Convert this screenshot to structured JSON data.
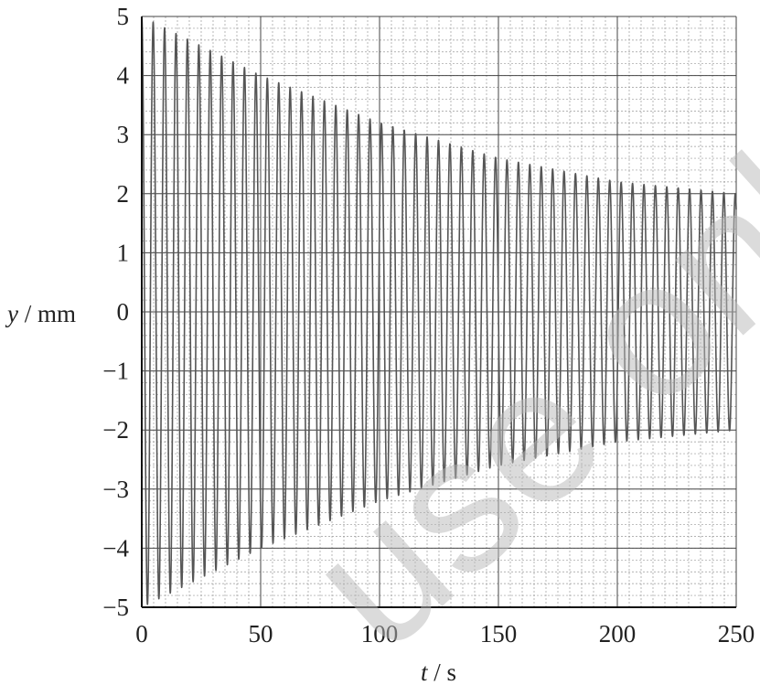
{
  "chart_data": {
    "type": "line",
    "title": "",
    "xlabel_var": "t",
    "xlabel_unit": "/ s",
    "ylabel_var": "y",
    "ylabel_unit": "/ mm",
    "xlim": [
      0,
      250
    ],
    "ylim": [
      -5,
      5
    ],
    "x_ticks": [
      "0",
      "50",
      "100",
      "150",
      "200",
      "250"
    ],
    "y_ticks": [
      "5",
      "4",
      "3",
      "2",
      "1",
      "0",
      "−1",
      "−2",
      "−3",
      "−4",
      "−5"
    ],
    "grid": true,
    "minor_grid_step_x": 5,
    "minor_grid_step_y": 0.2,
    "series": [
      {
        "oscillation_period_s": 4.8,
        "envelope_points": [
          {
            "t": 0,
            "amplitude": 5.0
          },
          {
            "t": 50,
            "amplitude": 4.0
          },
          {
            "t": 100,
            "amplitude": 3.2
          },
          {
            "t": 150,
            "amplitude": 2.6
          },
          {
            "t": 200,
            "amplitude": 2.2
          },
          {
            "t": 250,
            "amplitude": 2.0
          }
        ],
        "color": "#555555"
      }
    ]
  },
  "watermark_text": "use only"
}
